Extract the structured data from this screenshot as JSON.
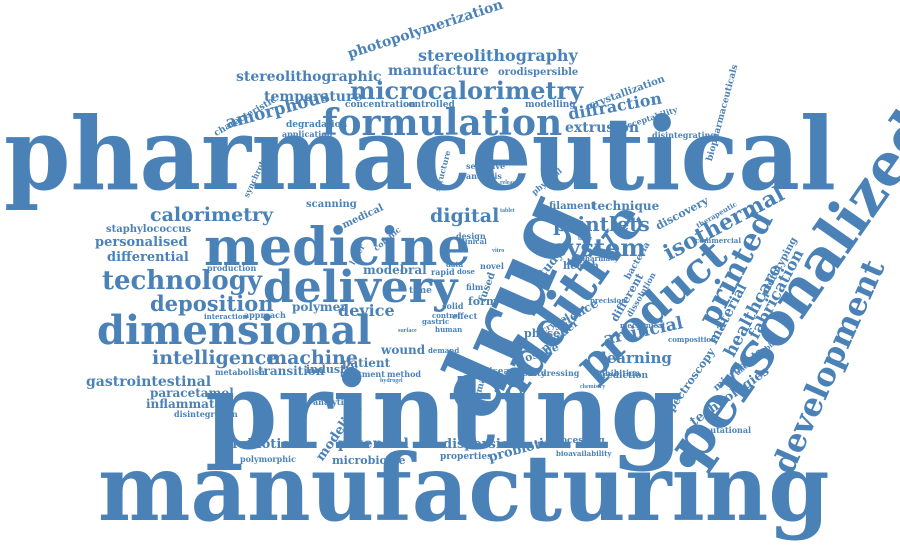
{
  "colors": {
    "word": "#4a82b8",
    "background": "#ffffff"
  },
  "words": {
    "pharmaceutical": "pharmaceutical",
    "printing": "printing",
    "manufacturing": "manufacturing",
    "drug": "drug",
    "personalized": "personalized",
    "additive": "additive",
    "medicine": "medicine",
    "delivery": "delivery",
    "dimensional": "dimensional",
    "formulation": "formulation",
    "product": "product",
    "printed": "printed",
    "development": "development",
    "microcalorimetry": "microcalorimetry",
    "technology": "technology",
    "calorimetry": "calorimetry",
    "digital": "digital",
    "system": "system",
    "printlets": "printlets",
    "isothermal": "isothermal",
    "deposition": "deposition",
    "intelligence": "intelligence",
    "machine": "machine",
    "gastrointestinal": "gastrointestinal",
    "stereolithography": "stereolithography",
    "stereolithographic": "stereolithographic",
    "manufacture": "manufacture",
    "photopolymerization": "photopolymerization",
    "amorphous": "amorphous",
    "temperature": "temperature",
    "diffraction": "diffraction",
    "extrusion": "extrusion",
    "orodispersible": "orodispersible",
    "crystallization": "crystallization",
    "staphylococcus": "staphylococcus",
    "personalised": "personalised",
    "differential": "differential",
    "filament": "filament",
    "technique": "technique",
    "material": "material",
    "healthcare": "healthcare",
    "fabrication": "fabrication",
    "artificial": "artificial",
    "learning": "learning",
    "technologies": "technologies",
    "spectroscopy": "spectroscopy",
    "probiotics": "probiotics",
    "potential": "potential",
    "microbiome": "microbiome",
    "dispersion": "dispersion",
    "probiotic": "probiotic",
    "properties": "properties",
    "processing": "processing",
    "modeling": "modeling",
    "paracetamol": "paracetamol",
    "inflammatory": "inflammatory",
    "disintegration": "disintegration",
    "transition": "transition",
    "industry": "industry",
    "patient": "patient",
    "wound": "wound",
    "polymer": "polymer",
    "device": "device",
    "model": "model",
    "oral": "oral",
    "fused": "fused",
    "form": "form",
    "dosage": "dosage",
    "study": "study",
    "health": "health",
    "science": "science",
    "crystal": "crystal",
    "powder": "powder",
    "phase": "phase",
    "different": "different",
    "discovery": "discovery",
    "medical": "medical",
    "scanning": "scanning",
    "structure": "structure",
    "analysis": "analysis",
    "selective": "selective",
    "physical": "physical",
    "modelling": "modelling",
    "characteristic": "characteristic",
    "degradation": "degradation",
    "application": "application",
    "concentration": "concentration",
    "controlled": "controlled",
    "acceptability": "acceptability",
    "biopharmaceuticals": "biopharmaceuticals",
    "disintegrating": "disintegrating",
    "synchrotron": "synchrotron",
    "production": "production",
    "metabolism": "metabolism",
    "treatment": "treatment",
    "method": "method",
    "disease": "disease",
    "stability": "stability",
    "dressing": "dressing",
    "prediction": "prediction",
    "inhibition": "inhibition",
    "microbiota": "microbiota",
    "computational": "computational",
    "polymorphic": "polymorphic",
    "analytical": "analytical",
    "interaction": "interaction",
    "approach": "approach",
    "bioavailability": "bioavailability",
    "thermal": "thermal",
    "antimicrobial": "antimicrobial",
    "prototyping": "prototyping",
    "clinical": "clinical",
    "laser": "laser",
    "rapid": "rapid",
    "time": "time",
    "effect": "effect",
    "solid": "solid",
    "novel": "novel",
    "dose": "dose",
    "data": "data",
    "design": "design",
    "colonic": "colonic",
    "tablet": "tablet",
    "surface": "surface",
    "hydrogel": "hydrogel",
    "bacteria": "bacteria",
    "film": "film",
    "vitro": "vitro",
    "release": "release",
    "therapeutic": "therapeutic",
    "pharmacy": "pharmacy",
    "dissolution": "dissolution",
    "mechanical": "mechanical",
    "commercial": "commercial",
    "composition": "composition",
    "precision": "precision",
    "demand": "demand",
    "human": "human",
    "gastric": "gastric",
    "control": "control",
    "tissue": "tissue",
    "chemistry": "chemistry"
  }
}
